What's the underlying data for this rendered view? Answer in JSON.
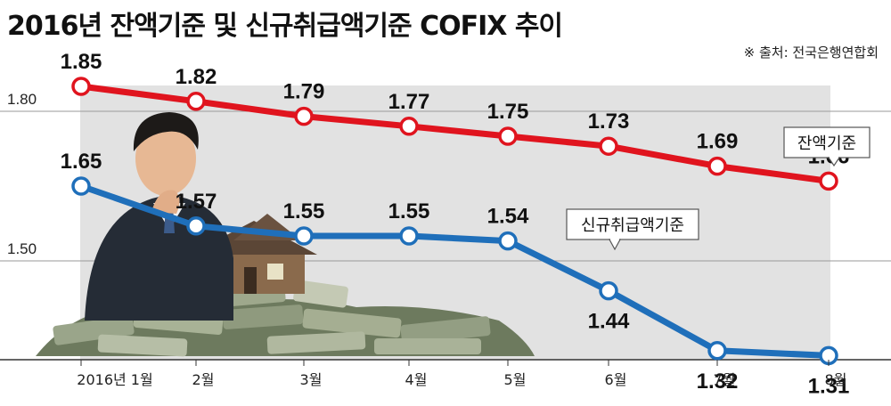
{
  "title": "2016년 잔액기준 및 신규취급액기준 COFIX 추이",
  "source": "※ 출처: 전국은행연합회",
  "colors": {
    "series_balance": "#e0141e",
    "series_new": "#1f6fba",
    "plot_bg": "#e2e2e2"
  },
  "chart_data": {
    "type": "line",
    "title": "2016년 잔액기준 및 신규취급액기준 COFIX 추이",
    "categories": [
      "2016년 1월",
      "2월",
      "3월",
      "4월",
      "5월",
      "6월",
      "7월",
      "8월"
    ],
    "series": [
      {
        "name": "잔액기준",
        "values": [
          1.85,
          1.82,
          1.79,
          1.77,
          1.75,
          1.73,
          1.69,
          1.66
        ],
        "color": "#e0141e"
      },
      {
        "name": "신규취급액기준",
        "values": [
          1.65,
          1.57,
          1.55,
          1.55,
          1.54,
          1.44,
          1.32,
          1.31
        ],
        "color": "#1f6fba"
      }
    ],
    "yticks": [
      "1.80",
      "1.50"
    ],
    "ytick_values": [
      1.8,
      1.5
    ],
    "ylim": [
      1.31,
      1.85
    ],
    "grid": true,
    "legend": "callout labels"
  }
}
